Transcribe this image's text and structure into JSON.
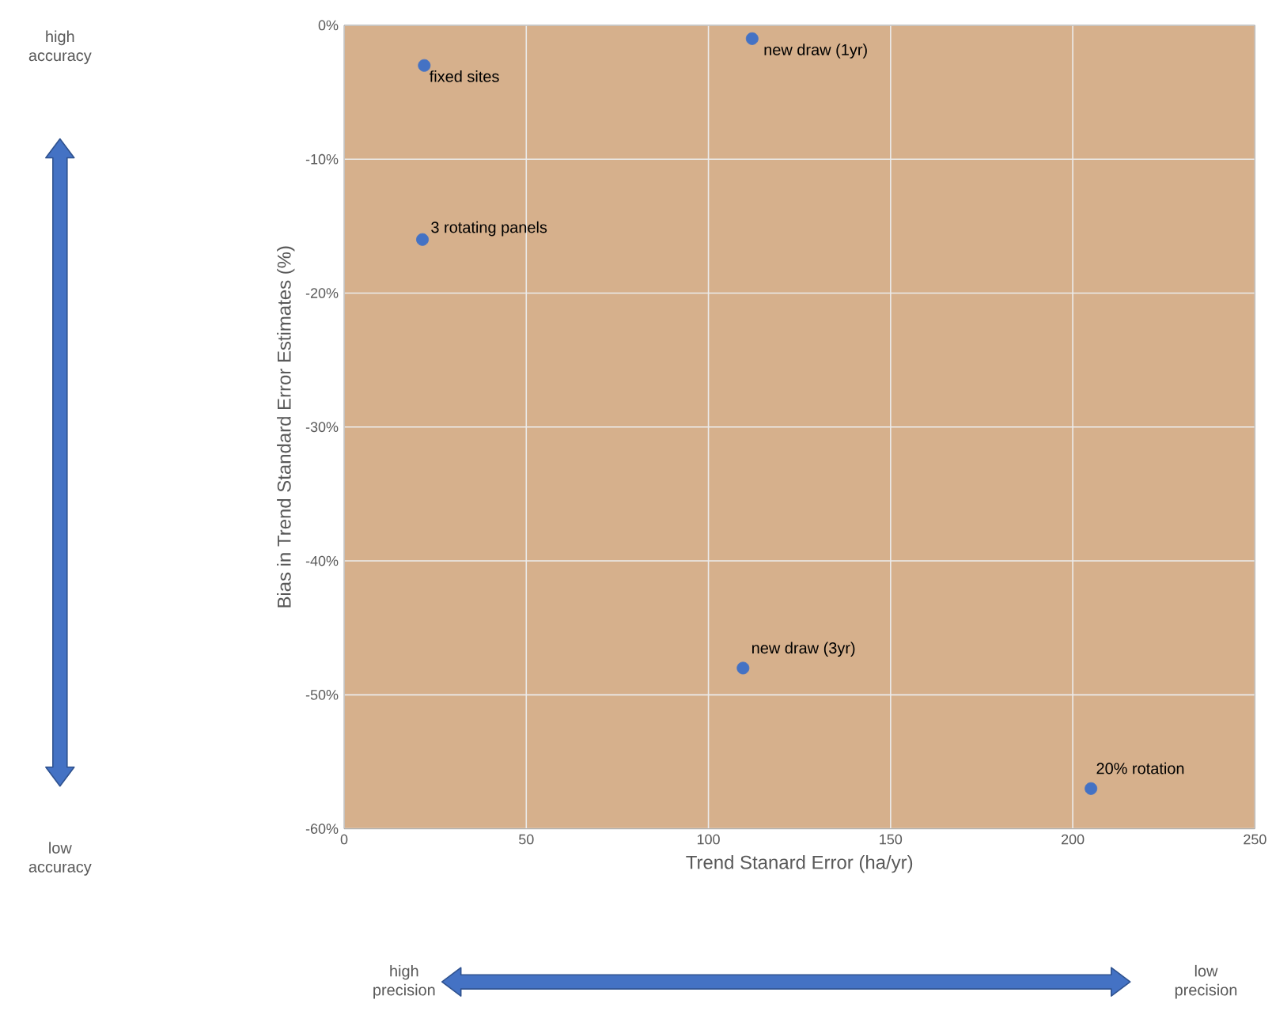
{
  "chart_data": {
    "type": "scatter",
    "xlabel": "Trend Stanard Error (ha/yr)",
    "ylabel": "Bias in Trend Standard Error Estimates (%)",
    "x": [
      22,
      112,
      21.5,
      109.5,
      205
    ],
    "series": [
      {
        "color": "#4472c4",
        "values": [
          -3,
          -1,
          -16,
          -48,
          -57
        ]
      }
    ],
    "marker": "circle",
    "grid": true,
    "xlim": [
      0,
      250
    ],
    "xticks": [
      0,
      50,
      100,
      150,
      200,
      250
    ],
    "ylim": [
      -60,
      0
    ],
    "yticks": [
      {
        "value": -60,
        "label": "-60%"
      },
      {
        "value": -50,
        "label": "-50%"
      },
      {
        "value": -40,
        "label": "-40%"
      },
      {
        "value": -30,
        "label": "-30%"
      },
      {
        "value": -20,
        "label": "-20%"
      },
      {
        "value": -10,
        "label": "-10%"
      },
      {
        "value": 0,
        "label": "0%"
      }
    ],
    "annotations": [
      {
        "text": "fixed sites",
        "x": 22,
        "y": -3
      },
      {
        "text": "new draw (1yr)",
        "x": 112,
        "y": -1
      },
      {
        "text": "3 rotating panels",
        "x": 21.5,
        "y": -16
      },
      {
        "text": "new draw (3yr)",
        "x": 109.5,
        "y": -48
      },
      {
        "text": "20% rotation",
        "x": 205,
        "y": -57
      },
      "high accuracy",
      "low accuracy",
      "high precision",
      "low precision"
    ]
  }
}
